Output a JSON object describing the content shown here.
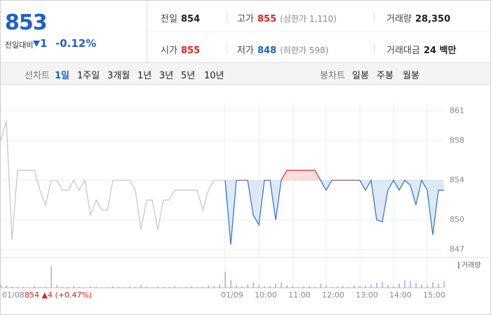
{
  "quote": {
    "price": "853",
    "change_label": "전일대비",
    "change": "1",
    "rate": "-0.12%"
  },
  "stats": [
    {
      "label": "전일",
      "value": "854"
    },
    {
      "label": "고가",
      "value": "855",
      "note": "(상한가 1,110)"
    },
    {
      "label": "거래량",
      "value": "28,350"
    },
    {
      "label": "시가",
      "value": "855"
    },
    {
      "label": "저가",
      "value": "848",
      "note": "(하한가 598)"
    },
    {
      "label": "거래대금",
      "value": "24 백만"
    }
  ],
  "tabs": {
    "line_label": "선차트",
    "line": [
      "1일",
      "1주일",
      "3개월",
      "1년",
      "3년",
      "5년",
      "10년"
    ],
    "candle_label": "봉차트",
    "candle": [
      "일봉",
      "주봉",
      "월봉"
    ]
  },
  "chart_data": {
    "type": "line",
    "categories": [
      "01/08",
      null,
      null,
      null,
      null,
      null,
      null,
      null,
      null,
      null,
      null,
      null,
      null,
      null,
      null,
      null,
      null,
      null,
      null,
      null,
      null,
      null,
      null,
      null,
      null,
      null,
      null,
      null,
      null,
      null,
      null,
      null,
      null,
      null,
      null,
      null,
      null,
      null,
      null,
      null,
      "01/09",
      null,
      null,
      null,
      null,
      null,
      "10:00",
      null,
      null,
      null,
      null,
      null,
      "11:00",
      null,
      null,
      null,
      null,
      null,
      "12:00",
      null,
      null,
      null,
      null,
      null,
      "13:00",
      null,
      null,
      null,
      null,
      null,
      "14:00",
      null,
      null,
      null,
      null,
      null,
      "15:00",
      null,
      null,
      null
    ],
    "series": [
      {
        "color": "#c8c8c8",
        "values": [
          858,
          860,
          848,
          855,
          855,
          855,
          855,
          853,
          851.5,
          854,
          854,
          853,
          853,
          854,
          853,
          854,
          850.5,
          852,
          851,
          851,
          854,
          854,
          854,
          854,
          853,
          849,
          852,
          852,
          849,
          852,
          852,
          853,
          853,
          853,
          853,
          853,
          851,
          853,
          854,
          854,
          null,
          null,
          null,
          null,
          null,
          null,
          null,
          null,
          null,
          null,
          null,
          null,
          null,
          null,
          null,
          null,
          null,
          null,
          null,
          null,
          null,
          null,
          null,
          null,
          null,
          null,
          null,
          null,
          null,
          null,
          null,
          null,
          null,
          null,
          null,
          null,
          null,
          null,
          null,
          null
        ]
      },
      {
        "color": "#3a78d0",
        "values": [
          null,
          null,
          null,
          null,
          null,
          null,
          null,
          null,
          null,
          null,
          null,
          null,
          null,
          null,
          null,
          null,
          null,
          null,
          null,
          null,
          null,
          null,
          null,
          null,
          null,
          null,
          null,
          null,
          null,
          null,
          null,
          null,
          null,
          null,
          null,
          null,
          null,
          null,
          null,
          null,
          854,
          847.5,
          854,
          854,
          854,
          850.5,
          849.5,
          854,
          854,
          850,
          854,
          855,
          855,
          855,
          855,
          855,
          855,
          854,
          853,
          854,
          854,
          854,
          854,
          854,
          854,
          853,
          854,
          850,
          849.8,
          853,
          854,
          853,
          854,
          853.5,
          851.5,
          854,
          853,
          848.5,
          853,
          853
        ]
      },
      {
        "name": "거래량",
        "color": "#9b8fd0",
        "axis": "y2",
        "values": [
          400,
          300,
          150,
          100,
          80,
          60,
          200,
          100,
          150,
          2600,
          300,
          100,
          80,
          200,
          100,
          60,
          150,
          100,
          50,
          80,
          200,
          100,
          60,
          150,
          80,
          300,
          100,
          60,
          150,
          100,
          80,
          200,
          60,
          100,
          150,
          80,
          100,
          300,
          200,
          400,
          2000,
          900,
          300,
          200,
          400,
          600,
          300,
          150,
          200,
          500,
          700,
          300,
          200,
          100,
          150,
          200,
          100,
          500,
          300,
          100,
          150,
          200,
          100,
          300,
          200,
          250,
          400,
          600,
          700,
          300,
          200,
          500,
          900,
          800,
          600,
          400,
          300,
          700,
          500,
          800
        ]
      }
    ],
    "reference_line": 854,
    "ylim": [
      846.2,
      861.8
    ],
    "yticks": [
      861,
      858,
      854,
      850,
      847
    ],
    "y2lim": [
      0,
      3000
    ],
    "grid": true,
    "annotation": "854 ▲4 (+0.47%)"
  }
}
